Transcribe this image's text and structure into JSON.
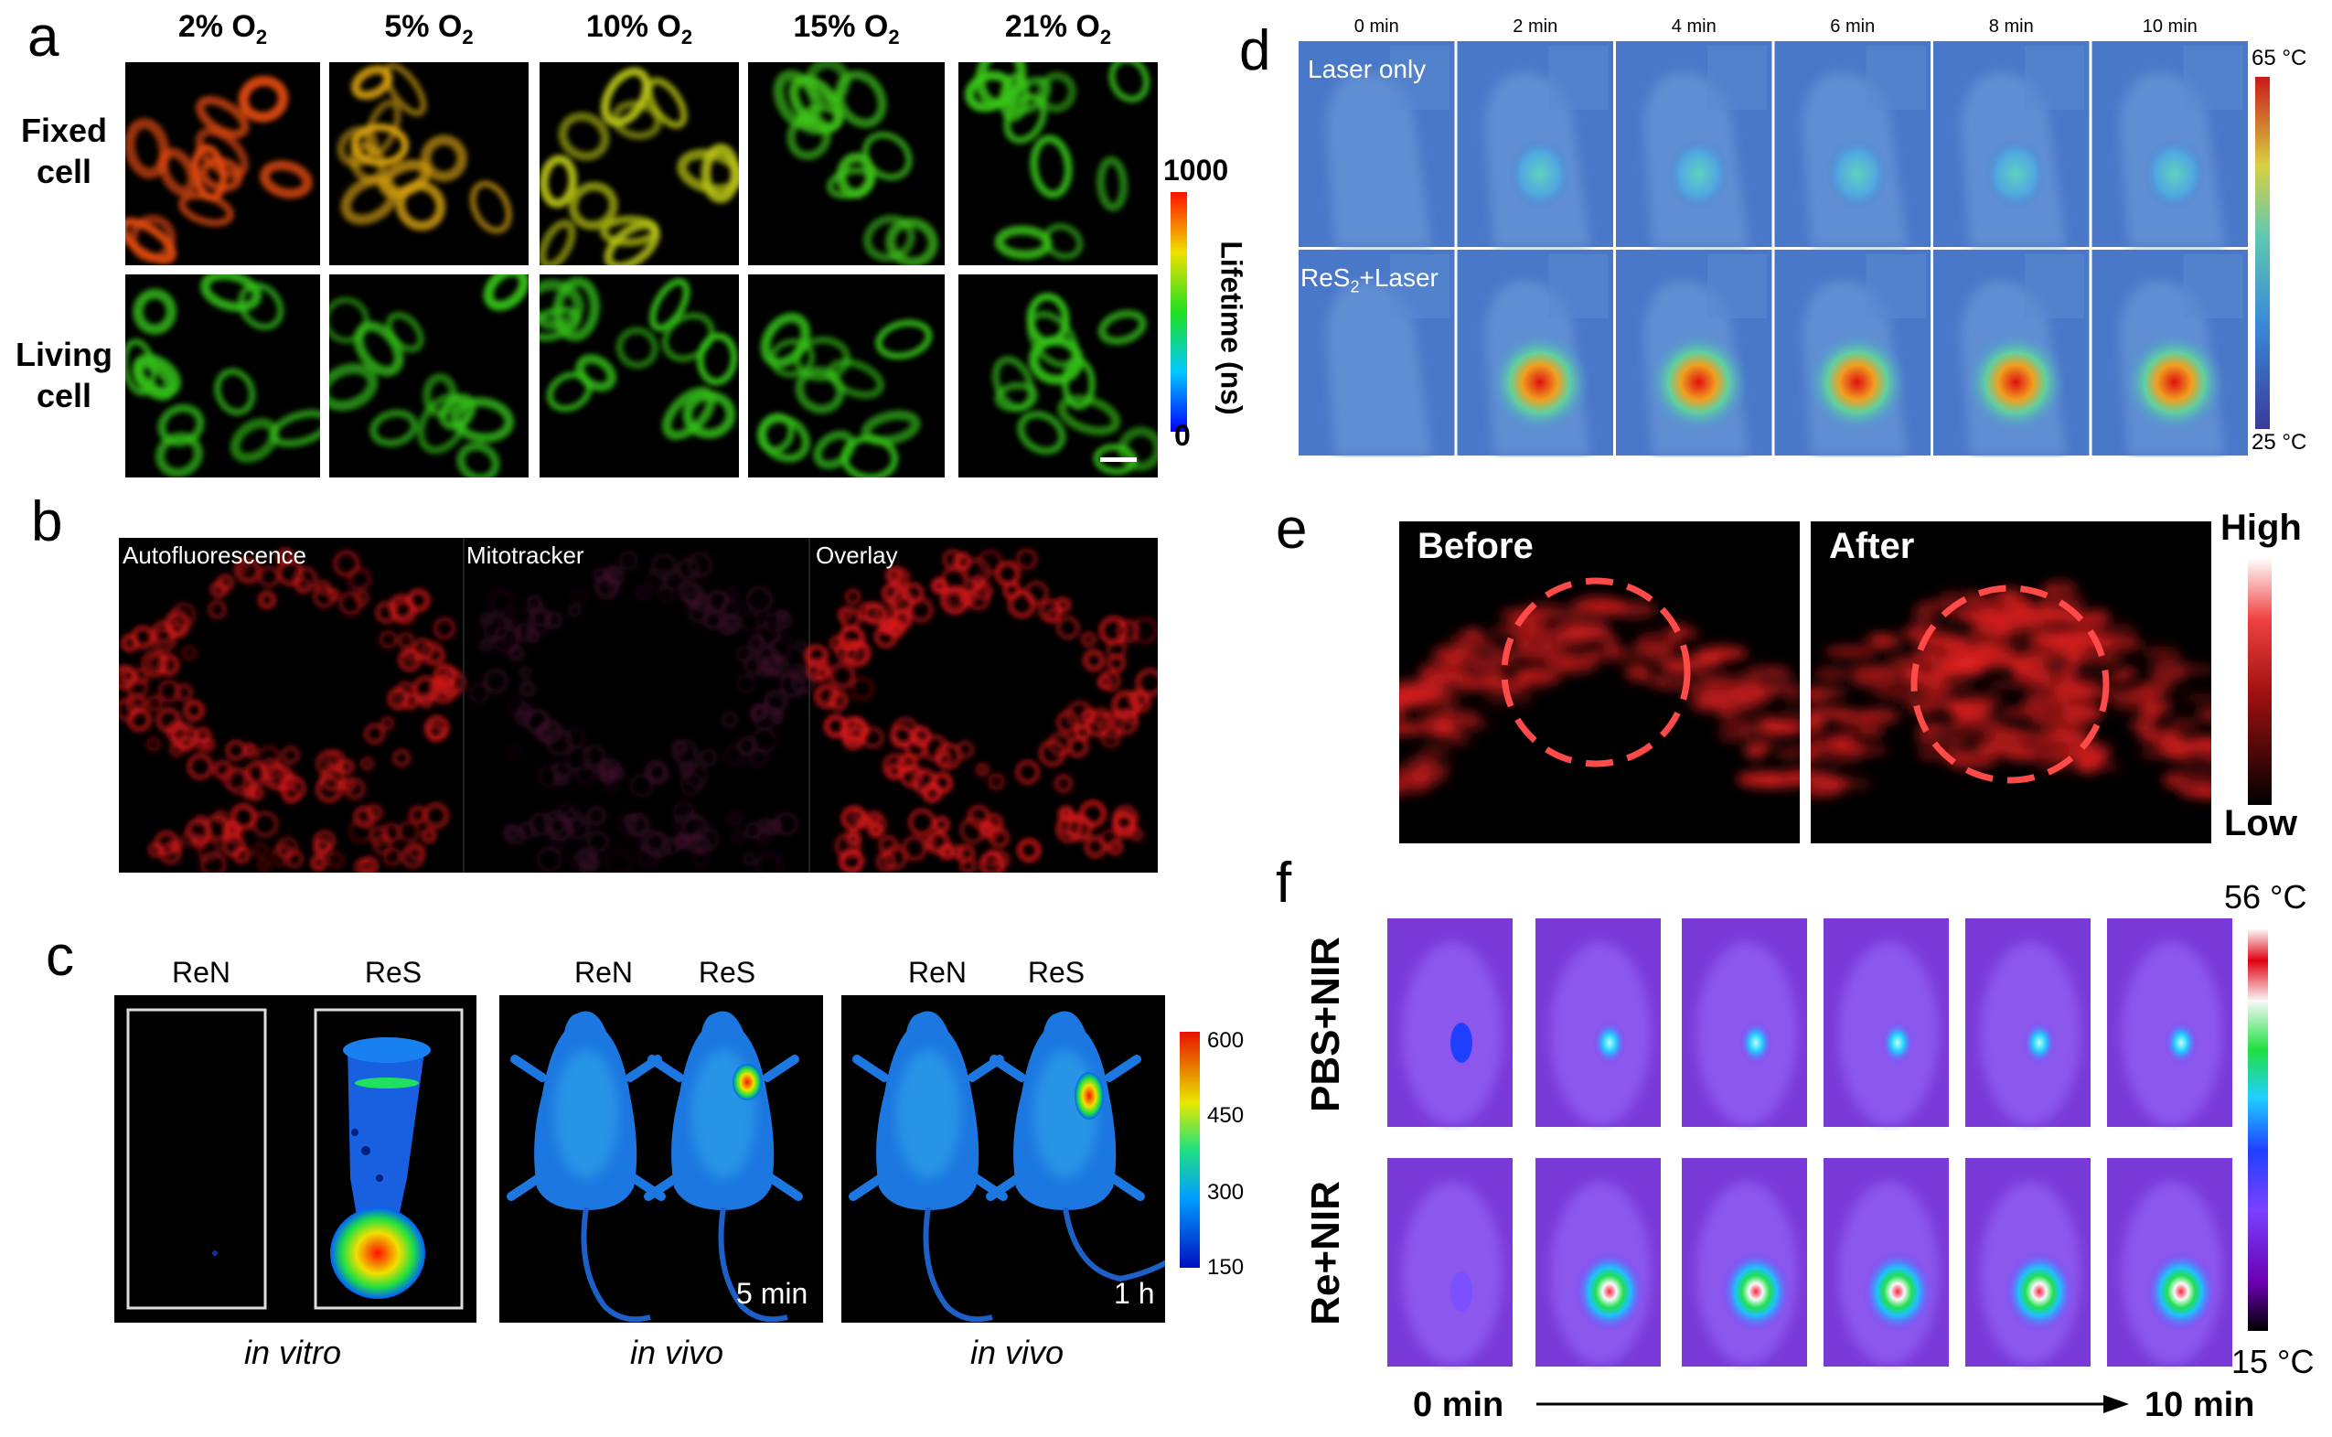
{
  "panels": {
    "a": {
      "label": "a",
      "columns": [
        "2% O",
        "5% O",
        "10% O",
        "15% O",
        "21% O"
      ],
      "subscript": "2",
      "rows": [
        [
          "Fixed",
          "cell"
        ],
        [
          "Living",
          "cell"
        ]
      ],
      "colorbar": {
        "max": "1000",
        "min": "0",
        "title": "Lifetime (ns)"
      }
    },
    "b": {
      "label": "b",
      "titles": [
        "Autofluorescence",
        "Mitotracker",
        "Overlay"
      ]
    },
    "c": {
      "label": "c",
      "groups": [
        {
          "labels": [
            "ReN",
            "ReS"
          ],
          "caption": "in vitro",
          "time": ""
        },
        {
          "labels": [
            "ReN",
            "ReS"
          ],
          "caption": "in vivo",
          "time": "5 min"
        },
        {
          "labels": [
            "ReN",
            "ReS"
          ],
          "caption": "in vivo",
          "time": "1 h"
        }
      ],
      "colorbar_ticks": [
        "600",
        "450",
        "300",
        "150"
      ]
    },
    "d": {
      "label": "d",
      "times": [
        "0 min",
        "2 min",
        "4 min",
        "6 min",
        "8 min",
        "10 min"
      ],
      "row_labels": [
        "Laser only",
        "ReS",
        "2",
        "+Laser"
      ],
      "colorbar": {
        "max": "65 °C",
        "min": "25 °C"
      }
    },
    "e": {
      "label": "e",
      "titles": [
        "Before",
        "After"
      ],
      "colorbar": {
        "max": "High",
        "min": "Low"
      }
    },
    "f": {
      "label": "f",
      "rows": [
        "PBS+NIR",
        "Re+NIR"
      ],
      "colorbar": {
        "max": "56 °C",
        "min": "15 °C"
      },
      "axis": {
        "start": "0 min",
        "end": "10 min"
      }
    }
  },
  "colors": {
    "fixed_cells": [
      "#e04a10",
      "#d6a010",
      "#b8c414",
      "#3ec41a",
      "#38c41a"
    ],
    "living_cells": "#34c018",
    "mito_red": "#d8181a",
    "thermal_bg": "#4a78c8",
    "nir_bg": "#7a3ad8"
  }
}
